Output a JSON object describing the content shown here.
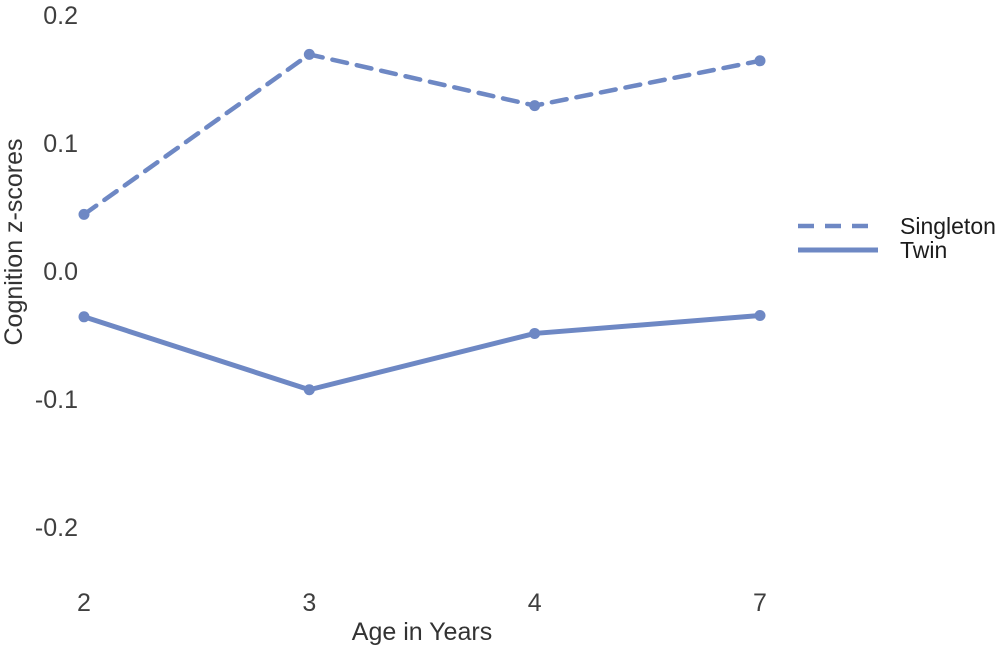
{
  "figure": {
    "background": "#ffffff",
    "accent": "#6e88c4",
    "tick_color": "#3f3f3f"
  },
  "chart_data": {
    "type": "line",
    "title": "",
    "xlabel": "Age in Years",
    "ylabel": "Cognition z-scores",
    "x_tick_labels": [
      "2",
      "3",
      "4",
      "7"
    ],
    "x_values": [
      2,
      3,
      4,
      7
    ],
    "x_spacing": "categorical-equal",
    "y_tick_labels": [
      "0.2",
      "0.1",
      "0.0",
      "-0.1",
      "-0.2"
    ],
    "y_tick_values": [
      0.2,
      0.1,
      0.0,
      -0.1,
      -0.2
    ],
    "ylim": [
      -0.25,
      0.2
    ],
    "grid": false,
    "axis_lines": false,
    "legend_position": "right",
    "series": [
      {
        "name": "Singleton",
        "style": "dashed",
        "marker": "circle",
        "color": "#6e88c4",
        "values": [
          0.045,
          0.17,
          0.13,
          0.165
        ]
      },
      {
        "name": "Twin",
        "style": "solid",
        "marker": "circle",
        "color": "#6e88c4",
        "values": [
          -0.035,
          -0.092,
          -0.048,
          -0.034
        ]
      }
    ]
  },
  "legend": {
    "items": [
      {
        "label": "Singleton",
        "style": "dashed"
      },
      {
        "label": "Twin",
        "style": "solid"
      }
    ]
  }
}
